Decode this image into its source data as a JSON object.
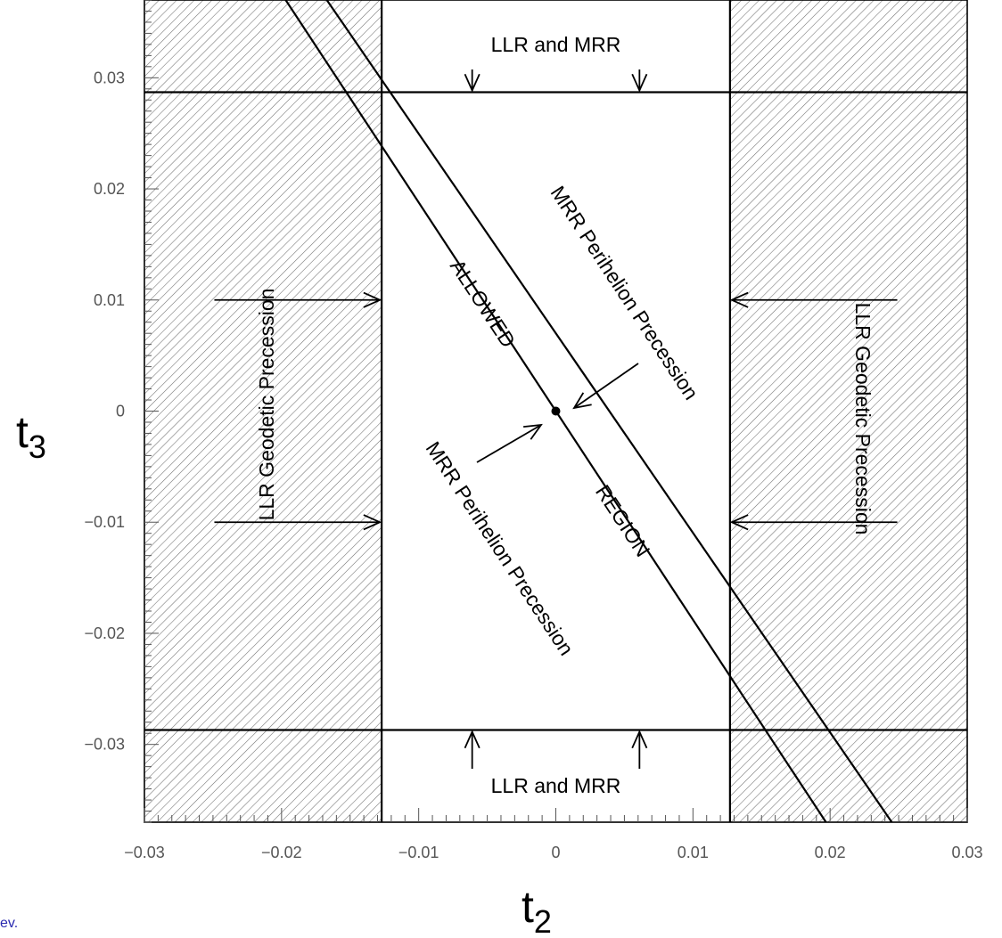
{
  "chart_data": {
    "type": "region-plot",
    "xlabel": "t",
    "xlabel_sub": "2",
    "ylabel": "t",
    "ylabel_sub": "3",
    "xlim": [
      -0.03,
      0.03
    ],
    "ylim": [
      -0.037,
      0.037
    ],
    "x_ticks": [
      -0.03,
      -0.02,
      -0.01,
      0,
      0.01,
      0.02,
      0.03
    ],
    "x_tick_labels": [
      "−0.03",
      "−0.02",
      "−0.01",
      "0",
      "0.01",
      "0.02",
      "0.03"
    ],
    "y_ticks": [
      0.03,
      0.02,
      0.01,
      0,
      -0.01,
      -0.02,
      -0.03
    ],
    "y_tick_labels": [
      "0.03",
      "0.02",
      "0.01",
      "0",
      "−0.01",
      "−0.02",
      "−0.03"
    ],
    "bounds": {
      "t2_min": -0.0127,
      "t2_max": 0.0127,
      "t3_min": -0.0287,
      "t3_max": 0.0287
    },
    "diagonal_lines": [
      {
        "name": "upper",
        "points": [
          [
            -0.0197,
            0.037
          ],
          [
            0.0197,
            -0.037
          ]
        ]
      },
      {
        "name": "lower",
        "points": [
          [
            -0.0167,
            0.037
          ],
          [
            0.0245,
            -0.037
          ]
        ]
      }
    ],
    "point": [
      0,
      0
    ],
    "labels": {
      "top": "LLR and MRR",
      "bottom": "LLR and MRR",
      "left": "LLR Geodetic Precession",
      "right": "LLR Geodetic Precession",
      "upper_right_diag": "MRR Perihelion Precession",
      "lower_left_diag": "MRR Perihelion Precession",
      "allowed_1": "ALLOWED",
      "allowed_2": "REGION"
    },
    "footnote": "ev.",
    "colors": {
      "line": "#000000",
      "hatch": "#6f6f6f",
      "tick_text": "#555555",
      "footnote": "#2a2ab0"
    }
  }
}
